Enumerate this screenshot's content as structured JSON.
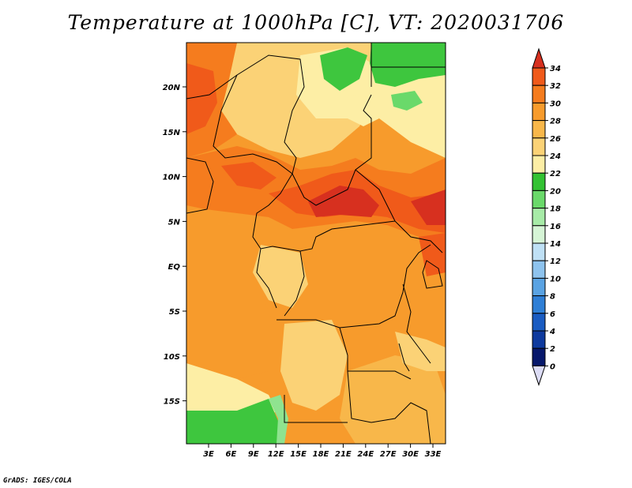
{
  "title": "Temperature at 1000hPa [C], VT: 2020031706",
  "credit": "GrADS: IGES/COLA",
  "colors": {
    "deep_red": "#d7301f",
    "red_orange": "#f05a1a",
    "orange": "#f28c1e",
    "light_orange": "#f5a63c",
    "tan": "#f9c46a",
    "pale_yellow": "#fce49a",
    "green": "#3ec63e",
    "light_green": "#8fe38f",
    "border": "#000000"
  },
  "map": {
    "lat_labels": [
      "20N",
      "15N",
      "10N",
      "5N",
      "EQ",
      "5S",
      "10S",
      "15S"
    ],
    "lon_labels": [
      "3E",
      "6E",
      "9E",
      "12E",
      "15E",
      "18E",
      "21E",
      "24E",
      "27E",
      "30E",
      "33E"
    ]
  },
  "colorbar": {
    "levels": [
      "34",
      "32",
      "30",
      "28",
      "26",
      "24",
      "22",
      "20",
      "18",
      "16",
      "14",
      "12",
      "10",
      "8",
      "6",
      "4",
      "2",
      "0"
    ],
    "bins": [
      {
        "color": "#d7301f"
      },
      {
        "color": "#f05a1a"
      },
      {
        "color": "#f57c1e"
      },
      {
        "color": "#f79b2c"
      },
      {
        "color": "#f8b74a"
      },
      {
        "color": "#fbd276"
      },
      {
        "color": "#fdeea5"
      },
      {
        "color": "#33c233"
      },
      {
        "color": "#6ad96a"
      },
      {
        "color": "#a7eba7"
      },
      {
        "color": "#d6f5d6"
      },
      {
        "color": "#bfe0f5"
      },
      {
        "color": "#8ec3ee"
      },
      {
        "color": "#5aa3e3"
      },
      {
        "color": "#2f7fd6"
      },
      {
        "color": "#1a5cc2"
      },
      {
        "color": "#0e3a9e"
      },
      {
        "color": "#07186b"
      },
      {
        "color": "#dcdcf5"
      }
    ]
  }
}
